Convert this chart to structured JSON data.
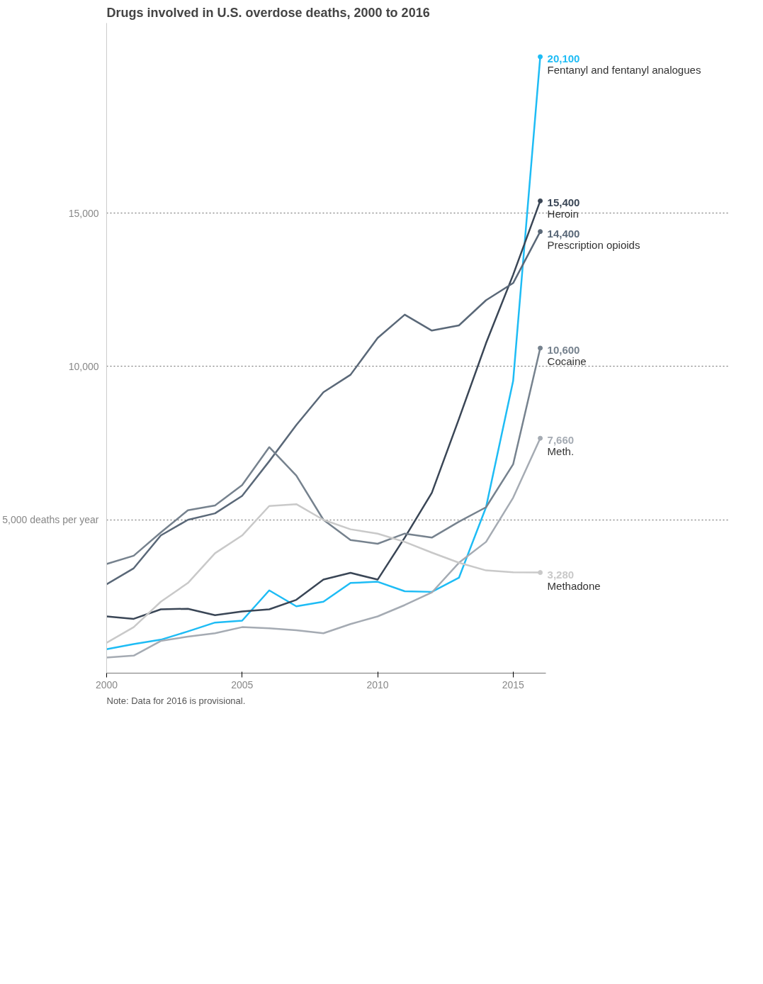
{
  "chart_data": {
    "type": "line",
    "title": "Drugs involved in U.S. overdose deaths, 2000 to 2016",
    "x": [
      2000,
      2001,
      2002,
      2003,
      2004,
      2005,
      2006,
      2007,
      2008,
      2009,
      2010,
      2011,
      2012,
      2013,
      2014,
      2015,
      2016
    ],
    "series": [
      {
        "name": "Fentanyl and fentanyl analogues",
        "color": "#1ebcf5",
        "values": [
          780,
          950,
          1090,
          1360,
          1650,
          1710,
          2700,
          2180,
          2330,
          2940,
          2980,
          2670,
          2650,
          3110,
          5410,
          9530,
          20100
        ],
        "value_labels": [
          null,
          null,
          null,
          null,
          null,
          null,
          null,
          null,
          null,
          null,
          null,
          null,
          null,
          null,
          null,
          null,
          "20,100"
        ]
      },
      {
        "name": "Heroin",
        "color": "#3a4656",
        "values": [
          1850,
          1770,
          2080,
          2100,
          1890,
          2010,
          2080,
          2390,
          3050,
          3270,
          3050,
          4420,
          5880,
          8290,
          10760,
          12990,
          15400
        ],
        "value_labels": [
          null,
          null,
          null,
          null,
          null,
          null,
          null,
          null,
          null,
          null,
          null,
          null,
          null,
          null,
          null,
          null,
          "15,400"
        ]
      },
      {
        "name": "Prescription opioids",
        "color": "#5a6878",
        "values": [
          2900,
          3420,
          4490,
          5000,
          5210,
          5780,
          6910,
          8090,
          9160,
          9730,
          10930,
          11690,
          11170,
          11340,
          12160,
          12720,
          14400
        ],
        "value_labels": [
          null,
          null,
          null,
          null,
          null,
          null,
          null,
          null,
          null,
          null,
          null,
          null,
          null,
          null,
          null,
          null,
          "14,400"
        ]
      },
      {
        "name": "Cocaine",
        "color": "#76828e",
        "values": [
          3560,
          3830,
          4590,
          5310,
          5470,
          6130,
          7370,
          6440,
          5000,
          4340,
          4220,
          4550,
          4420,
          4940,
          5410,
          6810,
          10600
        ],
        "value_labels": [
          null,
          null,
          null,
          null,
          null,
          null,
          null,
          null,
          null,
          null,
          null,
          null,
          null,
          null,
          null,
          null,
          "10,600"
        ]
      },
      {
        "name": "Meth.",
        "color": "#a5abb3",
        "values": [
          510,
          570,
          1050,
          1190,
          1300,
          1500,
          1460,
          1400,
          1300,
          1600,
          1850,
          2220,
          2630,
          3600,
          4280,
          5720,
          7660
        ],
        "value_labels": [
          null,
          null,
          null,
          null,
          null,
          null,
          null,
          null,
          null,
          null,
          null,
          null,
          null,
          null,
          null,
          null,
          "7,660"
        ]
      },
      {
        "name": "Methadone",
        "color": "#c9c9c9",
        "values": [
          990,
          1500,
          2330,
          2940,
          3910,
          4490,
          5450,
          5510,
          5000,
          4690,
          4550,
          4280,
          3930,
          3600,
          3350,
          3290,
          3280
        ],
        "value_labels": [
          null,
          null,
          null,
          null,
          null,
          null,
          null,
          null,
          null,
          null,
          null,
          null,
          null,
          null,
          null,
          null,
          "3,280"
        ]
      }
    ],
    "xlim": [
      2000,
      2016.2
    ],
    "ylim": [
      0,
      21200
    ],
    "xticks": [
      2000,
      2005,
      2010,
      2015
    ],
    "yticks": [
      {
        "value": 5000,
        "label": "5,000 deaths per year"
      },
      {
        "value": 10000,
        "label": "10,000"
      },
      {
        "value": 15000,
        "label": "15,000"
      }
    ],
    "grid": "y",
    "legend": false,
    "marker": "none",
    "line_style": "solid",
    "annotations": [
      "Note: Data for 2016 is provisional."
    ]
  }
}
